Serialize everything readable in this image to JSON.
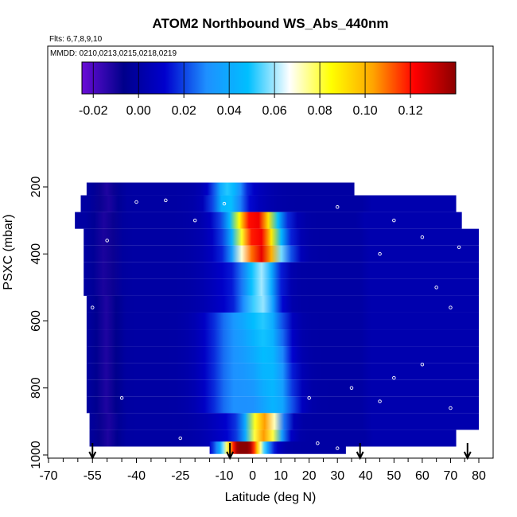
{
  "chart_data": {
    "type": "heatmap",
    "title": "ATOM2 Northbound WS_Abs_440nm",
    "flights_note": "Flts: 6,7,8,9,10",
    "dates_note": "MMDD: 0210,0213,0215,0218,0219",
    "xlabel": "Latitude (deg N)",
    "ylabel": "PSXC (mbar)",
    "xlim": [
      -70,
      80
    ],
    "ylim": [
      1000,
      0
    ],
    "x_ticks": [
      -70,
      -55,
      -40,
      -25,
      -10,
      0,
      10,
      20,
      30,
      40,
      50,
      60,
      70,
      80
    ],
    "x_tick_labels": [
      "-70",
      "-55",
      "-40",
      "-25",
      "-10",
      "0",
      "10",
      "20",
      "30",
      "40",
      "50",
      "60",
      "70",
      "80"
    ],
    "x_minor_ticks": [
      -65,
      -60,
      -50,
      -45,
      -35,
      -30,
      -20,
      -15,
      -5,
      5,
      15,
      25,
      35,
      45,
      55,
      65,
      75
    ],
    "y_ticks": [
      200,
      400,
      600,
      800,
      1000
    ],
    "y_tick_labels": [
      "200",
      "400",
      "600",
      "800",
      "1000"
    ],
    "colorbar": {
      "range": [
        -0.025,
        0.14
      ],
      "ticks": [
        -0.02,
        0.0,
        0.02,
        0.04,
        0.06,
        0.08,
        0.1,
        0.12
      ],
      "tick_labels": [
        "-0.02",
        "0.00",
        "0.02",
        "0.04",
        "0.06",
        "0.08",
        "0.10",
        "0.12"
      ],
      "colors": [
        "#6a0dd6",
        "#00008b",
        "#0000cd",
        "#1e90ff",
        "#00bfff",
        "#ffffff",
        "#ffff00",
        "#ffa500",
        "#ff0000",
        "#8b0000"
      ]
    },
    "profile_arrows_latitude": [
      -55,
      -8,
      38,
      76
    ],
    "pressure_layers": [
      {
        "p": 200,
        "lat": [
          -57,
          36
        ]
      },
      {
        "p": 250,
        "lat": [
          -59,
          72
        ]
      },
      {
        "p": 300,
        "lat": [
          -61,
          74
        ]
      },
      {
        "p": 350,
        "lat": [
          -58,
          80
        ]
      },
      {
        "p": 400,
        "lat": [
          -58,
          80
        ]
      },
      {
        "p": 450,
        "lat": [
          -58,
          80
        ]
      },
      {
        "p": 500,
        "lat": [
          -58,
          80
        ]
      },
      {
        "p": 550,
        "lat": [
          -57,
          80
        ]
      },
      {
        "p": 600,
        "lat": [
          -57,
          80
        ]
      },
      {
        "p": 650,
        "lat": [
          -57,
          80
        ]
      },
      {
        "p": 700,
        "lat": [
          -57,
          80
        ]
      },
      {
        "p": 750,
        "lat": [
          -57,
          80
        ]
      },
      {
        "p": 800,
        "lat": [
          -57,
          80
        ]
      },
      {
        "p": 850,
        "lat": [
          -57,
          80
        ]
      },
      {
        "p": 900,
        "lat": [
          -56,
          80
        ]
      },
      {
        "p": 950,
        "lat": [
          -56,
          72
        ]
      },
      {
        "p": 985,
        "lat": [
          -15,
          33
        ]
      }
    ]
  }
}
